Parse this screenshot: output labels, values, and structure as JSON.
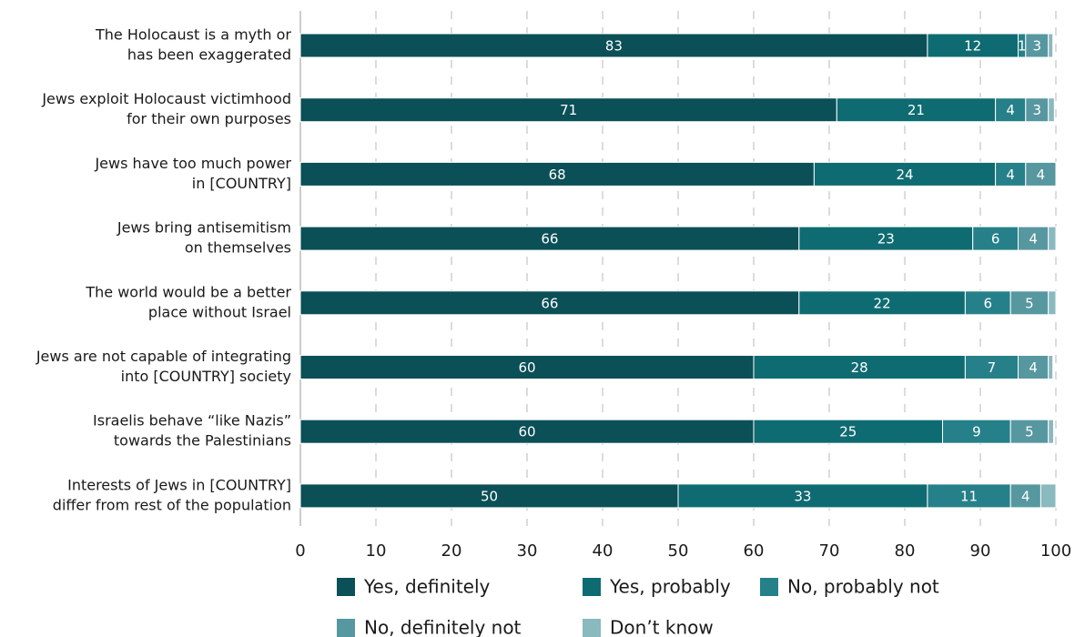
{
  "chart_data": {
    "type": "bar",
    "orientation": "horizontal",
    "stacked": true,
    "categories": [
      [
        "The Holocaust is a myth or",
        "has been exaggerated"
      ],
      [
        "Jews exploit Holocaust victimhood",
        "for their own purposes"
      ],
      [
        "Jews have too much power",
        "in [COUNTRY]"
      ],
      [
        "Jews bring antisemitism",
        "on themselves"
      ],
      [
        "The world would be a better",
        "place without Israel"
      ],
      [
        "Jews are not capable of integrating",
        "into [COUNTRY] society"
      ],
      [
        "Israelis behave “like Nazis”",
        "towards the Palestinians"
      ],
      [
        "Interests of Jews in [COUNTRY]",
        "differ from rest of the population"
      ]
    ],
    "series": [
      {
        "name": "Yes, definitely",
        "color": "#0b4f57",
        "values": [
          83,
          71,
          68,
          66,
          66,
          60,
          60,
          50
        ],
        "labels": [
          "83",
          "71",
          "68",
          "66",
          "66",
          "60",
          "60",
          "50"
        ]
      },
      {
        "name": "Yes, probably",
        "color": "#0f6b72",
        "values": [
          12,
          21,
          24,
          23,
          22,
          28,
          25,
          33
        ],
        "labels": [
          "12",
          "21",
          "24",
          "23",
          "22",
          "28",
          "25",
          "33"
        ]
      },
      {
        "name": "No, probably not",
        "color": "#268089",
        "values": [
          1,
          4,
          4,
          6,
          6,
          7,
          9,
          11
        ],
        "labels": [
          "1",
          "4",
          "4",
          "6",
          "6",
          "7",
          "9",
          "11"
        ]
      },
      {
        "name": "No, definitely not",
        "color": "#5797a0",
        "values": [
          3,
          3,
          4,
          4,
          5,
          4,
          5,
          4
        ],
        "labels": [
          "3",
          "3",
          "4",
          "4",
          "5",
          "4",
          "5",
          "4"
        ]
      },
      {
        "name": "Don’t know",
        "color": "#8ab9be",
        "values": [
          0.6,
          0.8,
          0.3,
          1,
          1,
          0.6,
          0.7,
          2
        ],
        "labels": [
          "",
          "",
          "",
          "",
          "",
          "",
          "",
          ""
        ]
      }
    ],
    "xlim": [
      0,
      100
    ],
    "xticks": [
      "0",
      "10",
      "20",
      "30",
      "40",
      "50",
      "60",
      "70",
      "80",
      "90",
      "100"
    ],
    "grid": true,
    "legend": "bottom",
    "title": "",
    "xlabel": "",
    "ylabel": ""
  }
}
